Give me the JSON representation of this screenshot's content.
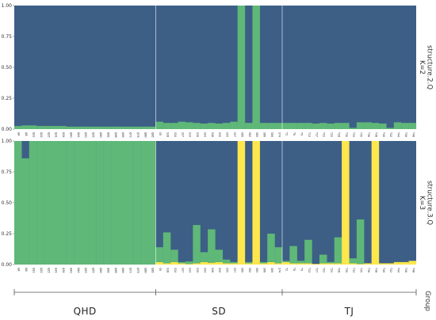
{
  "chart_data": {
    "type": "bar",
    "stacked": true,
    "colors": {
      "c1": "#3d5f86",
      "c2": "#5fb877",
      "c3": "#fde74c"
    },
    "ylim": [
      0,
      1
    ],
    "yticks": [
      "0.00",
      "0.25",
      "0.50",
      "0.75",
      "1.00"
    ],
    "group_title": "Group",
    "groups": [
      {
        "name": "QHD",
        "start": 0,
        "count": 19
      },
      {
        "name": "SD",
        "start": 19,
        "count": 17
      },
      {
        "name": "TJ",
        "start": 36,
        "count": 18
      }
    ],
    "samples": [
      "Q4",
      "Q8",
      "Q11",
      "Q22",
      "Q25",
      "Q31",
      "Q34",
      "Q40",
      "Q44",
      "Q50",
      "Q55",
      "Q60",
      "Q62",
      "Q66",
      "Q69",
      "Q73",
      "Q76",
      "Q80",
      "Q85",
      "S9",
      "S18",
      "S24",
      "S27",
      "S33",
      "S39",
      "S43",
      "S46",
      "S50",
      "S55",
      "S57",
      "S60",
      "S62",
      "S65",
      "S66",
      "S69",
      "S74",
      "T2",
      "T6",
      "T9",
      "T13",
      "T17",
      "T21",
      "T25",
      "T28",
      "T30",
      "T33",
      "T35",
      "T36",
      "T38",
      "T40",
      "T42",
      "T44",
      "T46",
      "T48"
    ],
    "panels": [
      {
        "strip": [
          "structure.2.Q",
          "K=2"
        ],
        "series": [
          {
            "color": "c2",
            "values": [
              0.025,
              0.03,
              0.03,
              0.025,
              0.025,
              0.025,
              0.025,
              0.02,
              0.02,
              0.02,
              0.02,
              0.02,
              0.02,
              0.02,
              0.02,
              0.02,
              0.02,
              0.02,
              0.02,
              0.06,
              0.05,
              0.05,
              0.06,
              0.055,
              0.05,
              0.045,
              0.05,
              0.045,
              0.05,
              0.06,
              1.0,
              0.05,
              1.0,
              0.05,
              0.05,
              0.05,
              0.05,
              0.05,
              0.05,
              0.05,
              0.045,
              0.05,
              0.045,
              0.05,
              0.05,
              0.01,
              0.055,
              0.055,
              0.05,
              0.045,
              0.01,
              0.055,
              0.05,
              0.05
            ]
          }
        ]
      },
      {
        "strip": [
          "structure.3.Q",
          "K=3"
        ],
        "series": [
          {
            "color": "c3",
            "values": [
              0,
              0,
              0,
              0,
              0,
              0,
              0,
              0,
              0,
              0,
              0,
              0,
              0,
              0,
              0,
              0,
              0,
              0,
              0,
              0.02,
              0.01,
              0.02,
              0.01,
              0.005,
              0.01,
              0.02,
              0.015,
              0.02,
              0.01,
              0.01,
              1.0,
              0.01,
              1.0,
              0.01,
              0.02,
              0.01,
              0.02,
              0.01,
              0.01,
              0.01,
              0.005,
              0.01,
              0.01,
              0.01,
              1.0,
              0.01,
              0.005,
              0.01,
              1.0,
              0.01,
              0.01,
              0.02,
              0.02,
              0.03
            ]
          },
          {
            "color": "c2",
            "values": [
              1.0,
              0.86,
              1.0,
              1.0,
              1.0,
              1.0,
              1.0,
              1.0,
              1.0,
              1.0,
              1.0,
              1.0,
              1.0,
              1.0,
              1.0,
              1.0,
              1.0,
              1.0,
              1.0,
              0.12,
              0.25,
              0.1,
              0.01,
              0.02,
              0.31,
              0.08,
              0.27,
              0.1,
              0.03,
              0.01,
              0,
              0.01,
              0,
              0.01,
              0.23,
              0.13,
              0.01,
              0.14,
              0.02,
              0.19,
              0,
              0.07,
              0.01,
              0.21,
              0,
              0.04,
              0.36,
              0,
              0,
              0,
              0,
              0,
              0,
              0
            ]
          }
        ]
      }
    ]
  }
}
